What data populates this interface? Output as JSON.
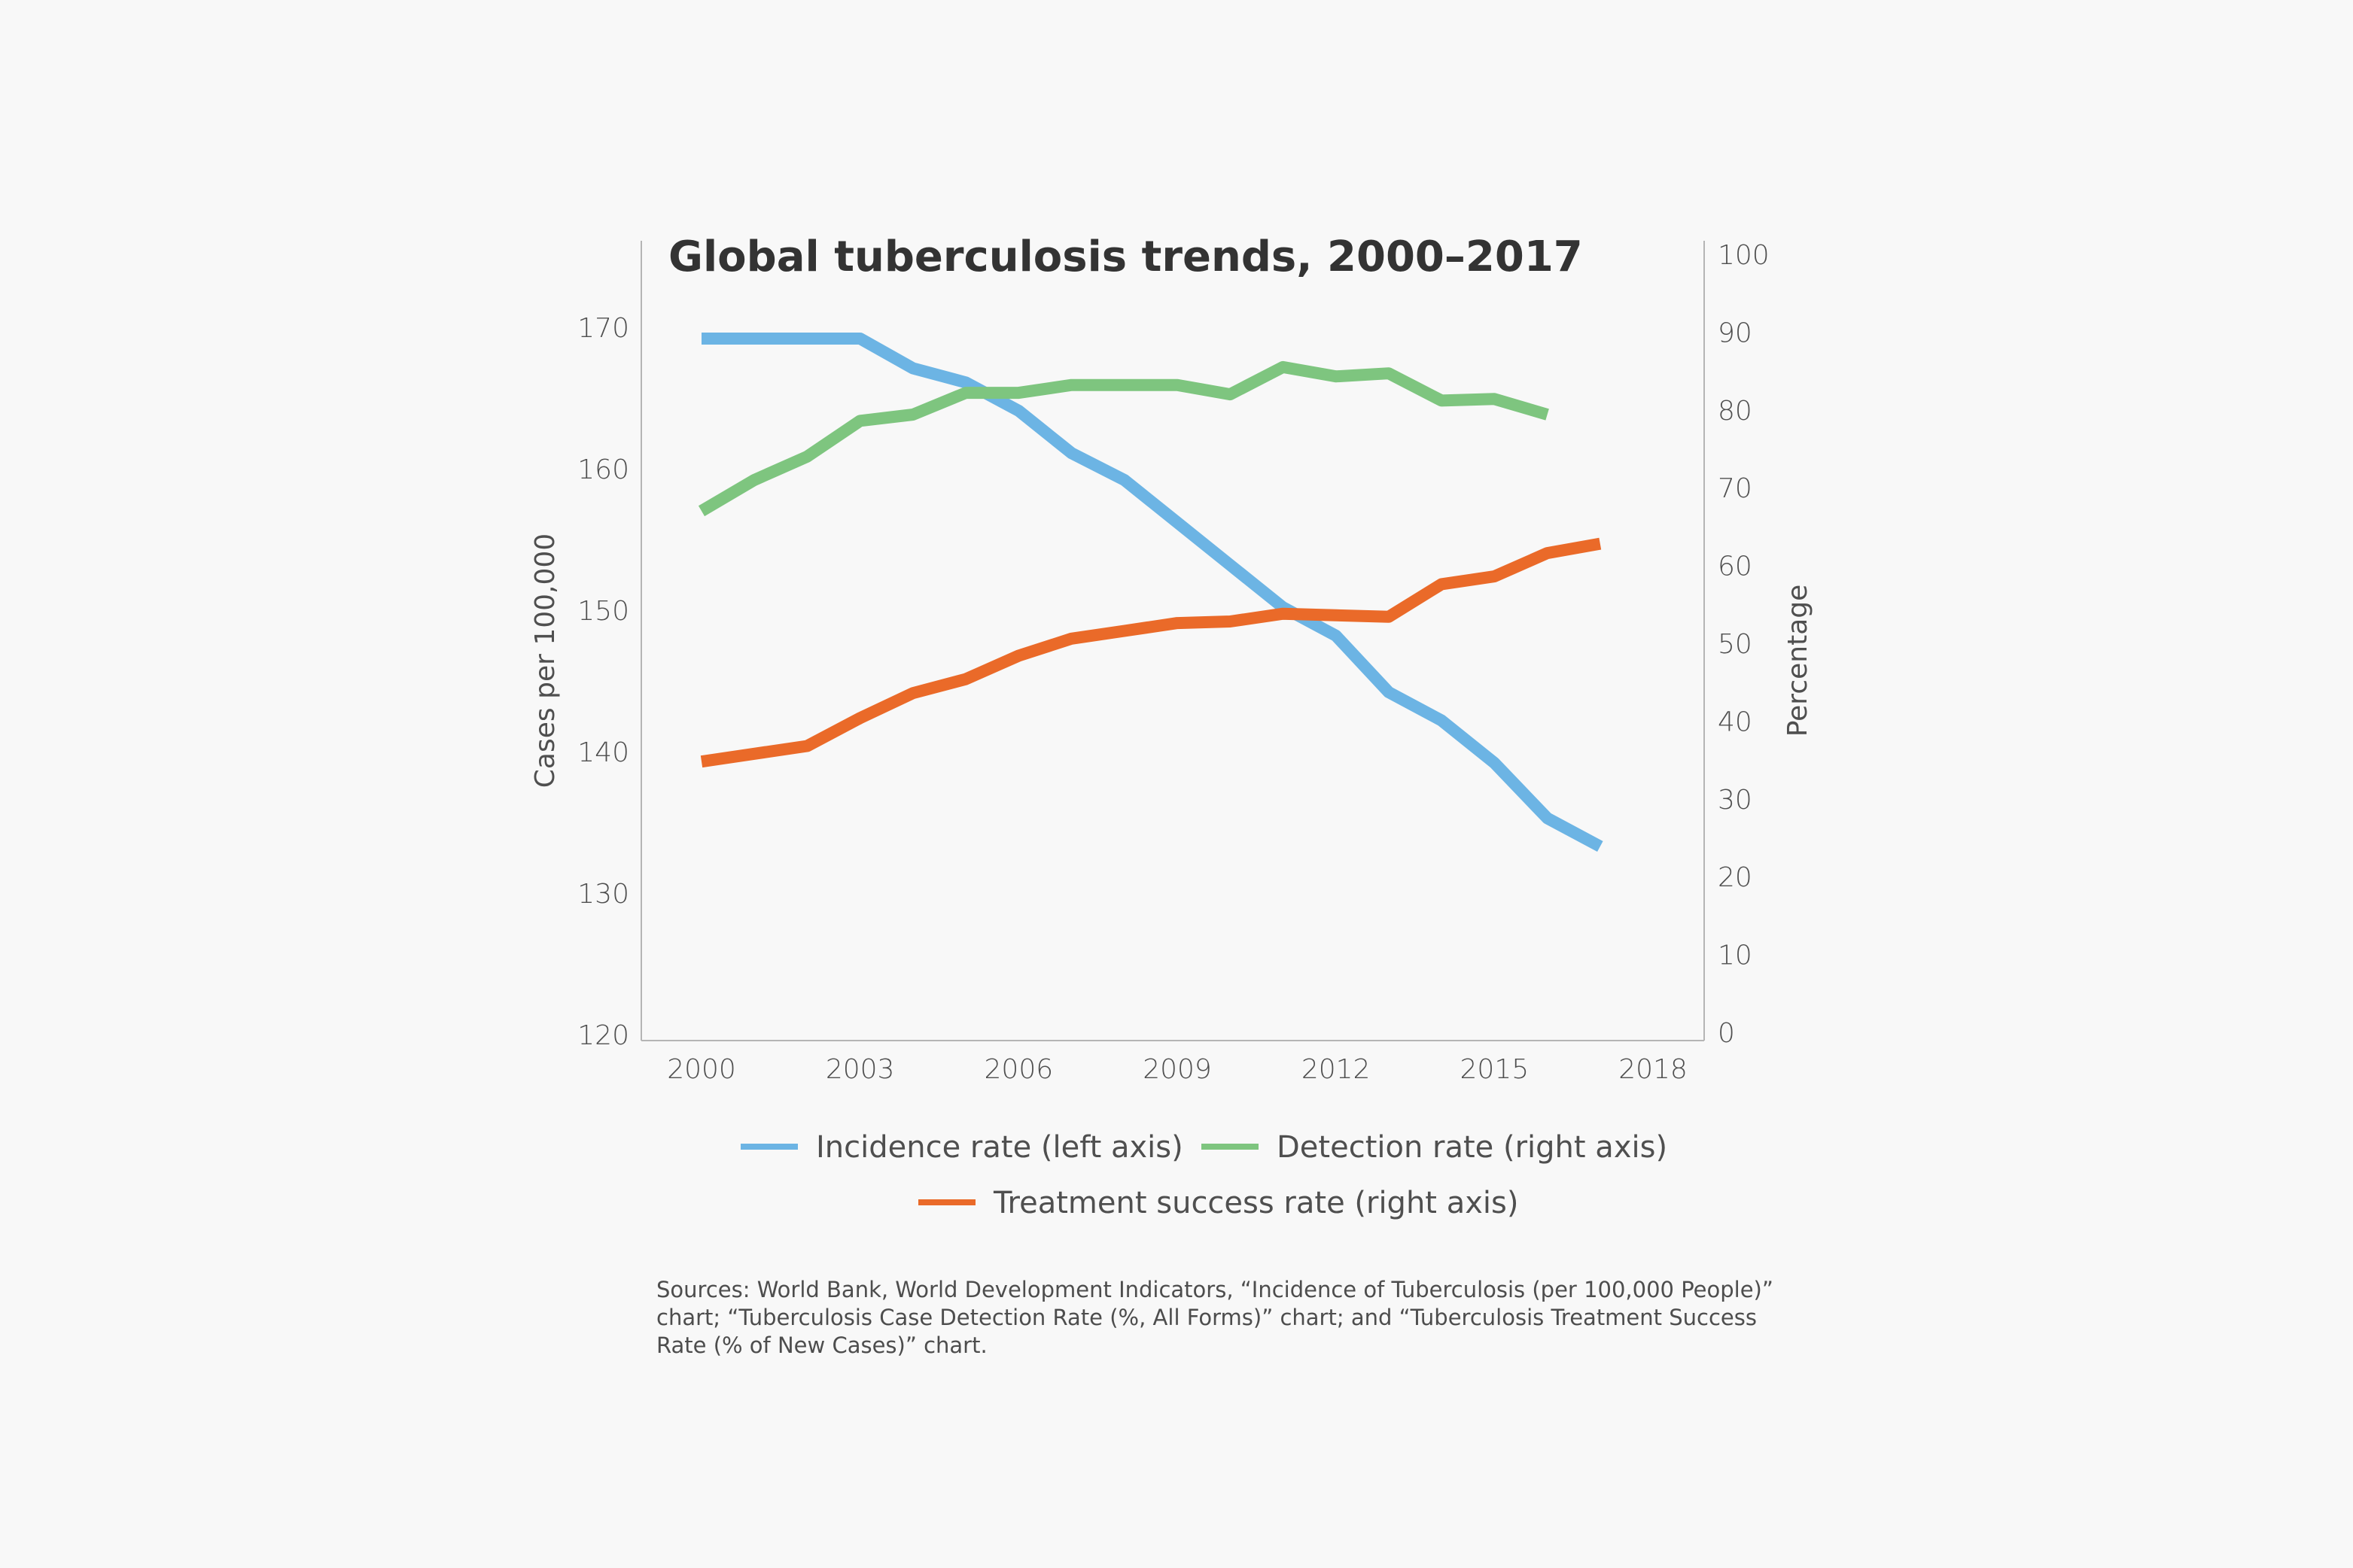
{
  "chart_data": {
    "type": "line",
    "title": "Global tuberculosis trends, 2000–2017",
    "ylabel_left": "Cases per 100,000",
    "ylabel_right": "Percentage",
    "x_ticks": [
      2000,
      2003,
      2006,
      2009,
      2012,
      2015,
      2018
    ],
    "xlim": [
      1999,
      2019
    ],
    "ylim_left": [
      120,
      175
    ],
    "yticks_left": [
      120,
      130,
      140,
      150,
      160,
      170
    ],
    "ylim_right": [
      0,
      100
    ],
    "yticks_right": [
      0,
      10,
      20,
      30,
      40,
      50,
      60,
      70,
      80,
      90,
      100
    ],
    "grid": false,
    "legend_position": "bottom",
    "series": [
      {
        "name": "Incidence rate (left axis)",
        "axis": "left",
        "color": "#6cb4e4",
        "x": [
          2000,
          2001,
          2002,
          2003,
          2004,
          2005,
          2006,
          2007,
          2008,
          2009,
          2010,
          2011,
          2012,
          2013,
          2014,
          2015,
          2016,
          2017
        ],
        "values": [
          169.2,
          169.2,
          169.2,
          169.2,
          167.1,
          166.1,
          164.1,
          161.1,
          159.2,
          156.2,
          153.2,
          150.2,
          148.2,
          144.2,
          142.2,
          139.2,
          135.3,
          133.3
        ]
      },
      {
        "name": "Detection rate (right axis)",
        "axis": "right",
        "color": "#7ec57f",
        "x": [
          2000,
          2001,
          2002,
          2003,
          2004,
          2005,
          2006,
          2007,
          2008,
          2009,
          2010,
          2011,
          2012,
          2013,
          2014,
          2015,
          2016
        ],
        "values": [
          67,
          71,
          74,
          78.6,
          79.4,
          82.2,
          82.2,
          83.2,
          83.2,
          83.2,
          82,
          85.5,
          84.3,
          84.7,
          81.2,
          81.4,
          79.4
        ]
      },
      {
        "name": "Treatment success rate (right axis)",
        "axis": "right",
        "color": "#ea6a29",
        "x": [
          2000,
          2001,
          2002,
          2003,
          2004,
          2005,
          2006,
          2007,
          2008,
          2009,
          2010,
          2011,
          2012,
          2013,
          2014,
          2015,
          2016,
          2017
        ],
        "values": [
          34.8,
          35.8,
          36.8,
          40.4,
          43.6,
          45.4,
          48.4,
          50.6,
          51.6,
          52.6,
          52.8,
          53.8,
          53.6,
          53.4,
          57.6,
          58.6,
          61.6,
          62.8
        ]
      }
    ]
  },
  "source_note": "Sources: World Bank, World Development Indicators, “Incidence of Tuberculosis (per 100,000 People)” chart; “Tuberculosis Case Detection Rate (%, All Forms)” chart; and “Tuberculosis Treatment Success Rate (% of New Cases)” chart."
}
